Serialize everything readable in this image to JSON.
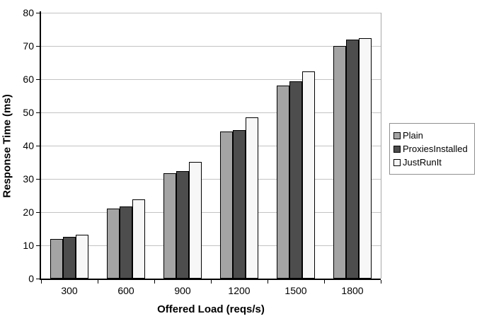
{
  "chart_data": {
    "type": "bar",
    "title": "",
    "xlabel": "Offered Load (reqs/s)",
    "ylabel": "Response Time (ms)",
    "categories": [
      "300",
      "600",
      "900",
      "1200",
      "1500",
      "1800"
    ],
    "series": [
      {
        "name": "Plain",
        "color": "#a4a4a4",
        "values": [
          11.9,
          21.1,
          31.6,
          44.3,
          58.1,
          70.1
        ]
      },
      {
        "name": "ProxiesInstalled",
        "color": "#4d4d4d",
        "values": [
          12.5,
          21.7,
          32.4,
          44.7,
          59.4,
          71.9
        ]
      },
      {
        "name": "JustRunIt",
        "color": "#f7f7f7",
        "values": [
          13.1,
          23.8,
          35.1,
          48.5,
          62.3,
          72.3
        ]
      }
    ],
    "ylim": [
      0,
      80
    ],
    "ytick_step": 10,
    "grid": true,
    "legend_position": "right",
    "colors": {
      "gridline": "#c3c3c3",
      "axis": "#000000",
      "plot_right_border": "#a8a8a8",
      "legend_border": "#8f8f8f",
      "background": "#ffffff"
    }
  }
}
